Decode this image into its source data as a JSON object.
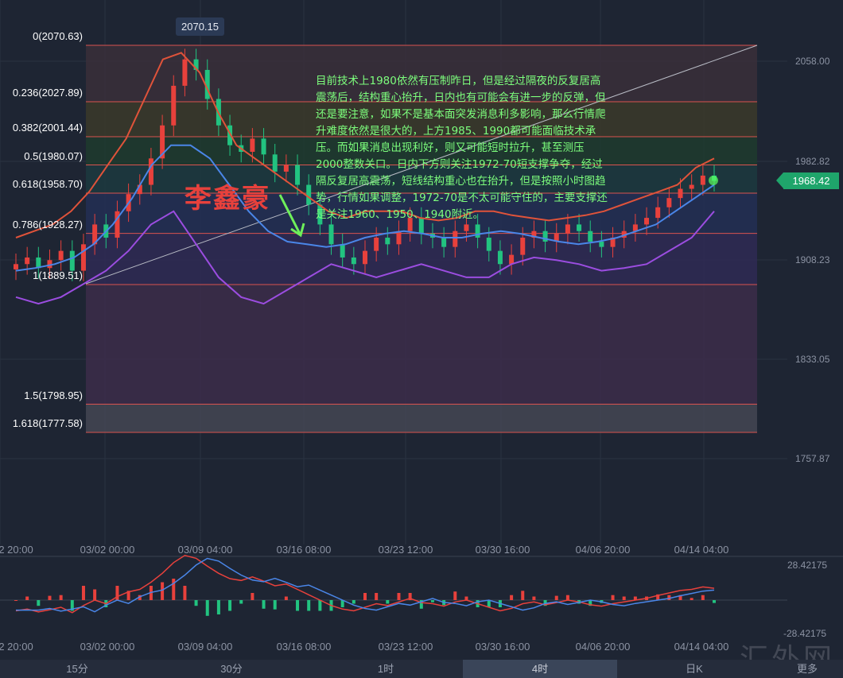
{
  "chart_data": {
    "type": "candlestick",
    "y_axis": {
      "ticks": [
        "2058.00",
        "1982.82",
        "1908.23",
        "1833.05",
        "1757.87"
      ]
    },
    "x_axis": {
      "ticks": [
        "2 20:00",
        "03/02 00:00",
        "03/09 04:00",
        "03/16 08:00",
        "03/23 12:00",
        "03/30 16:00",
        "04/06 20:00",
        "04/14 04:00"
      ]
    },
    "fibonacci": [
      {
        "label": "0(2070.63)",
        "level": 2070.63
      },
      {
        "label": "0.236(2027.89)",
        "level": 2027.89
      },
      {
        "label": "0.382(2001.44)",
        "level": 2001.44
      },
      {
        "label": "0.5(1980.07)",
        "level": 1980.07
      },
      {
        "label": "0.618(1958.70)",
        "level": 1958.7
      },
      {
        "label": "0.786(1928.27)",
        "level": 1928.27
      },
      {
        "label": "1(1889.51)",
        "level": 1889.51
      },
      {
        "label": "1.5(1798.95)",
        "level": 1798.95
      },
      {
        "label": "1.618(1777.58)",
        "level": 1777.58
      }
    ],
    "peak_label": "2070.15",
    "current_price": "1968.42",
    "macd": {
      "upper": "28.42175",
      "lower": "-28.42175"
    },
    "series": [
      {
        "kind": "candles",
        "close": [
          1905,
          1910,
          1902,
          1908,
          1915,
          1900,
          1920,
          1935,
          1925,
          1945,
          1958,
          1965,
          1985,
          2010,
          2040,
          2060,
          2052,
          2030,
          2010,
          1995,
          1990,
          2000,
          1988,
          1975,
          1980,
          1965,
          1950,
          1935,
          1920,
          1910,
          1905,
          1915,
          1925,
          1920,
          1930,
          1940,
          1928,
          1925,
          1918,
          1930,
          1935,
          1925,
          1915,
          1905,
          1912,
          1925,
          1930,
          1922,
          1928,
          1935,
          1930,
          1922,
          1918,
          1925,
          1930,
          1935,
          1940,
          1948,
          1955,
          1962,
          1965,
          1972,
          1968
        ]
      },
      {
        "kind": "upper_band",
        "values": [
          1925,
          1930,
          1935,
          1945,
          1960,
          1980,
          2000,
          2030,
          2060,
          2065,
          2050,
          2020,
          1995,
          1985,
          1975,
          1965,
          1955,
          1945,
          1940,
          1945,
          1945,
          1945,
          1940,
          1938,
          1940,
          1945,
          1945,
          1942,
          1940,
          1938,
          1940,
          1942,
          1945,
          1950,
          1955,
          1960,
          1965,
          1978,
          1985
        ]
      },
      {
        "kind": "mid_band",
        "values": [
          1900,
          1902,
          1905,
          1910,
          1920,
          1935,
          1955,
          1980,
          1995,
          1995,
          1985,
          1965,
          1945,
          1930,
          1922,
          1920,
          1918,
          1920,
          1925,
          1928,
          1930,
          1928,
          1925,
          1925,
          1928,
          1930,
          1928,
          1925,
          1922,
          1920,
          1922,
          1925,
          1930,
          1935,
          1945,
          1955,
          1965
        ]
      },
      {
        "kind": "lower_band",
        "values": [
          1880,
          1875,
          1880,
          1890,
          1900,
          1915,
          1935,
          1945,
          1920,
          1895,
          1880,
          1875,
          1885,
          1895,
          1905,
          1900,
          1895,
          1900,
          1905,
          1900,
          1895,
          1895,
          1905,
          1910,
          1908,
          1905,
          1900,
          1902,
          1905,
          1915,
          1925,
          1945
        ]
      }
    ]
  },
  "annotation": "目前技术上1980依然有压制昨日，但是经过隔夜的反复居高震荡后，结构重心抬升，日内也有可能会有进一步的反弹，但还是要注意，如果不是基本面突发消息利多影响，那么行情爬升难度依然是很大的，上方1985、1990都可能面临技术承压。而如果消息出现利好，则又可能短时拉升，甚至测压2000整数关口。日内下方则关注1972-70短支撑争夺，经过隔反复居高震荡，短线结构重心也在抬升，但是按照小时图趋势，行情如果调整，1972-70是不太可能守住的，主要支撑还是关注1960、1950、1940附近。",
  "watermark": "李鑫豪",
  "tabs": [
    "15分",
    "30分",
    "1时",
    "4时",
    "日K",
    "更多"
  ],
  "active_tab": "4时",
  "site_mark": "汇外网",
  "colors": {
    "bg": "#1e2533",
    "up": "#e8413c",
    "down": "#22c380",
    "fib": "#d9534f",
    "upper": "#e0533a",
    "mid": "#4a86e8",
    "lower": "#9b4de0"
  }
}
